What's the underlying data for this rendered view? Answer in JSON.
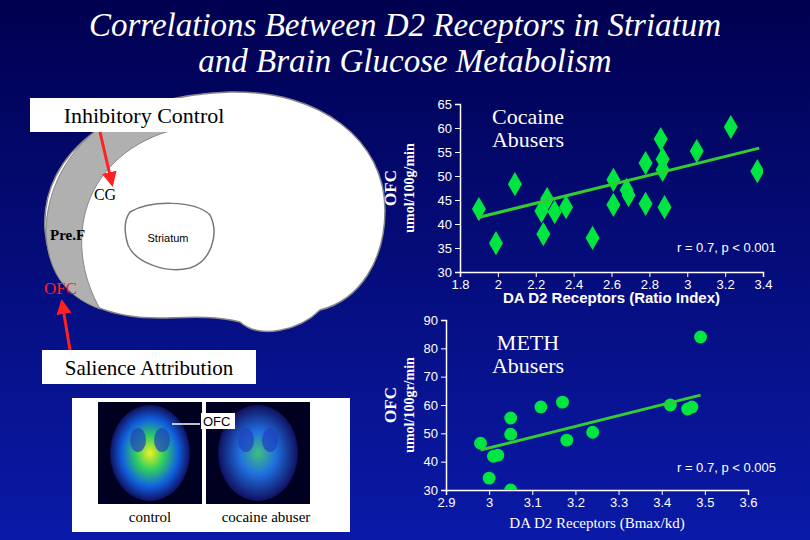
{
  "title_lines": [
    "Correlations Between D2 Receptors in Striatum",
    "and Brain Glucose Metabolism"
  ],
  "diagram": {
    "inhibitory_control": "Inhibitory Control",
    "cg": "CG",
    "pref": "Pre.F",
    "striatum": "Striatum",
    "ofc": "OFC",
    "salience": "Salience Attribution",
    "pet_ofc": "OFC",
    "pet_control": "control",
    "pet_abuser": "cocaine abuser"
  },
  "chart_data": [
    {
      "type": "scatter",
      "annotation": "Cocaine Abusers",
      "stats": "r = 0.7, p < 0.001",
      "ylabel": [
        "OFC",
        "umol/100g/min"
      ],
      "xlabel": "DA D2 Receptors (Ratio Index)",
      "xlim": [
        1.8,
        3.4
      ],
      "xticks": [
        1.8,
        2,
        2.2,
        2.4,
        2.6,
        2.8,
        3,
        3.2,
        3.4
      ],
      "ylim": [
        30,
        65
      ],
      "yticks": [
        30,
        35,
        40,
        45,
        50,
        55,
        60,
        65
      ],
      "series": [
        {
          "type": "scatter",
          "marker": "diamond",
          "color": "#00e641",
          "x": [
            1.9,
            1.99,
            2.09,
            2.24,
            2.26,
            2.23,
            2.3,
            2.36,
            2.5,
            2.61,
            2.61,
            2.69,
            2.68,
            2.78,
            2.78,
            2.87,
            2.87,
            2.88,
            2.86,
            3.05,
            3.23,
            3.37
          ],
          "values": [
            43.1,
            36.0,
            48.3,
            37.9,
            45.2,
            42.7,
            42.5,
            43.5,
            37.1,
            49.2,
            44.0,
            46.0,
            47.1,
            52.7,
            44.2,
            53.5,
            51.3,
            43.5,
            57.7,
            55.2,
            60.2,
            51.0
          ]
        },
        {
          "type": "line",
          "line_style": "solid",
          "color": "#33cc33",
          "x": [
            1.89,
            3.38
          ],
          "values": [
            41.3,
            55.8
          ]
        }
      ]
    },
    {
      "type": "scatter",
      "annotation": "METH Abusers",
      "stats": "r = 0.7, p < 0.005",
      "ylabel": [
        "OFC",
        "umol/100gr/min"
      ],
      "xlabel": "DA D2 Receptors (Bmax/kd)",
      "xlim": [
        2.9,
        3.6
      ],
      "xticks": [
        2.9,
        3,
        3.1,
        3.2,
        3.3,
        3.4,
        3.5,
        3.6
      ],
      "ylim": [
        30,
        90
      ],
      "yticks": [
        30,
        40,
        50,
        60,
        70,
        80,
        90
      ],
      "series": [
        {
          "type": "scatter",
          "marker": "circle",
          "color": "#00e641",
          "x": [
            2.98,
            3.0,
            3.01,
            3.02,
            3.05,
            3.05,
            3.05,
            3.12,
            3.17,
            3.18,
            3.24,
            3.42,
            3.46,
            3.47,
            3.49
          ],
          "values": [
            46.5,
            34.2,
            41.9,
            42.3,
            55.4,
            49.7,
            30,
            59.3,
            61.0,
            47.6,
            50.4,
            60.0,
            58.6,
            59.3,
            84.0
          ]
        },
        {
          "type": "line",
          "line_style": "solid",
          "color": "#33cc33",
          "x": [
            2.98,
            3.49
          ],
          "values": [
            44.1,
            63.5
          ]
        }
      ]
    }
  ]
}
